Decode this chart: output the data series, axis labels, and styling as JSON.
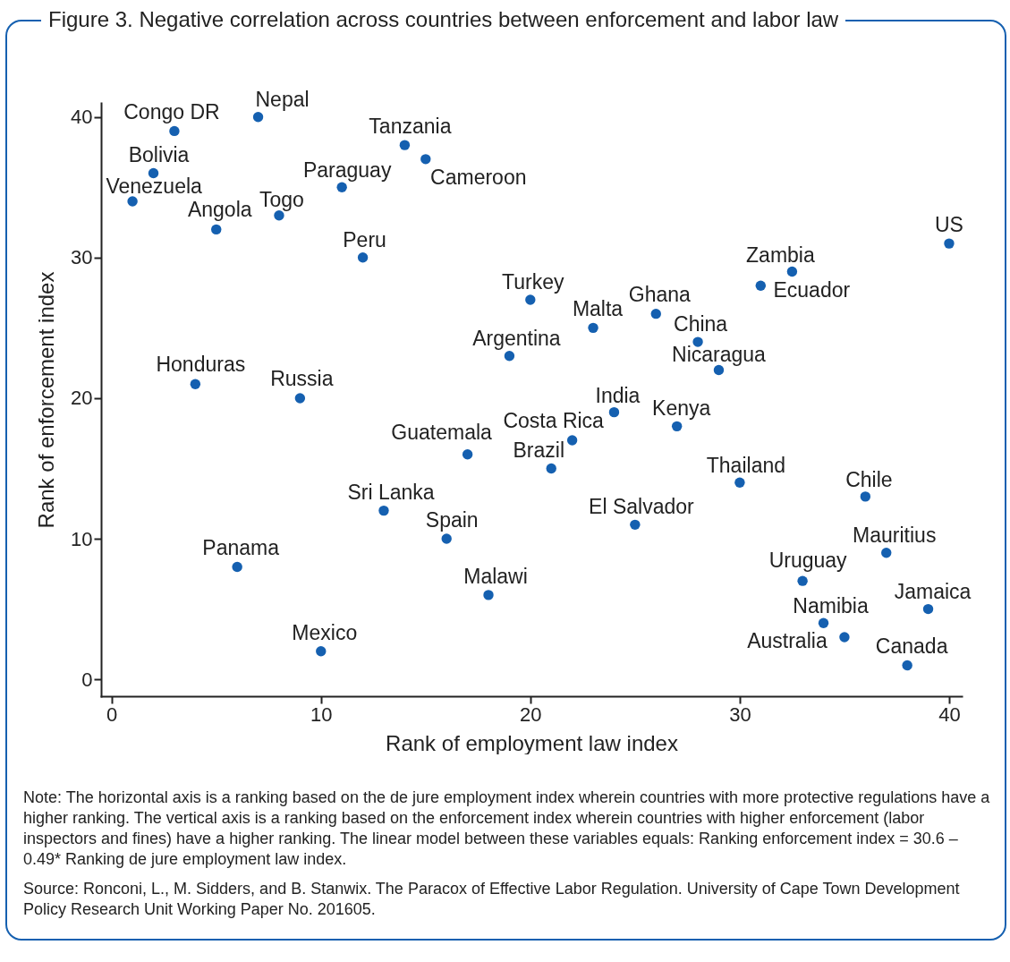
{
  "chart_data": {
    "type": "scatter",
    "title": "Figure 3. Negative correlation across countries between enforcement and labor law",
    "xlabel": "Rank of employment law index",
    "ylabel": "Rank of enforcement index",
    "x": [
      1,
      2,
      3,
      4,
      5,
      6,
      7,
      8,
      9,
      10,
      11,
      12,
      13,
      14,
      15,
      16,
      17,
      18,
      19,
      20,
      21,
      22,
      23,
      24,
      25,
      26,
      27,
      28,
      29,
      30,
      31,
      32.5,
      33,
      34,
      35,
      36,
      37,
      38,
      39,
      40
    ],
    "series": [
      {
        "color": "#1560b0",
        "values": [
          34,
          36,
          39,
          21,
          32,
          8,
          40,
          33,
          20,
          2,
          35,
          30,
          12,
          38,
          37,
          10,
          16,
          6,
          23,
          27,
          15,
          17,
          25,
          19,
          11,
          26,
          18,
          24,
          22,
          14,
          28,
          29,
          7,
          4,
          3,
          13,
          9,
          1,
          5,
          31
        ]
      }
    ],
    "xlim": [
      -0.5,
      40.6
    ],
    "ylim": [
      -1.2,
      41
    ],
    "xticks": [
      0,
      10,
      20,
      30,
      40
    ],
    "yticks": [
      0,
      10,
      20,
      30,
      40
    ],
    "marker": "circle",
    "grid": false,
    "annotations": [
      {
        "text": "Venezuela",
        "x": 1,
        "y": 34
      },
      {
        "text": "Bolivia",
        "x": 2,
        "y": 36
      },
      {
        "text": "Congo DR",
        "x": 3,
        "y": 39
      },
      {
        "text": "Honduras",
        "x": 4,
        "y": 21
      },
      {
        "text": "Angola",
        "x": 5,
        "y": 32
      },
      {
        "text": "Panama",
        "x": 6,
        "y": 8
      },
      {
        "text": "Nepal",
        "x": 7,
        "y": 40
      },
      {
        "text": "Togo",
        "x": 8,
        "y": 33
      },
      {
        "text": "Russia",
        "x": 9,
        "y": 20
      },
      {
        "text": "Mexico",
        "x": 10,
        "y": 2
      },
      {
        "text": "Paraguay",
        "x": 11,
        "y": 35
      },
      {
        "text": "Peru",
        "x": 12,
        "y": 30
      },
      {
        "text": "Sri Lanka",
        "x": 13,
        "y": 12
      },
      {
        "text": "Tanzania",
        "x": 14,
        "y": 38
      },
      {
        "text": "Cameroon",
        "x": 15,
        "y": 37
      },
      {
        "text": "Spain",
        "x": 16,
        "y": 10
      },
      {
        "text": "Guatemala",
        "x": 17,
        "y": 16
      },
      {
        "text": "Malawi",
        "x": 18,
        "y": 6
      },
      {
        "text": "Argentina",
        "x": 19,
        "y": 23
      },
      {
        "text": "Turkey",
        "x": 20,
        "y": 27
      },
      {
        "text": "Brazil",
        "x": 21,
        "y": 15
      },
      {
        "text": "Costa Rica",
        "x": 22,
        "y": 17
      },
      {
        "text": "Malta",
        "x": 23,
        "y": 25
      },
      {
        "text": "India",
        "x": 24,
        "y": 19
      },
      {
        "text": "El Salvador",
        "x": 25,
        "y": 11
      },
      {
        "text": "Ghana",
        "x": 26,
        "y": 26
      },
      {
        "text": "Kenya",
        "x": 27,
        "y": 18
      },
      {
        "text": "China",
        "x": 28,
        "y": 24
      },
      {
        "text": "Nicaragua",
        "x": 29,
        "y": 22
      },
      {
        "text": "Thailand",
        "x": 30,
        "y": 14
      },
      {
        "text": "Ecuador",
        "x": 31,
        "y": 28
      },
      {
        "text": "Zambia",
        "x": 32.5,
        "y": 29
      },
      {
        "text": "Uruguay",
        "x": 33,
        "y": 7
      },
      {
        "text": "Namibia",
        "x": 34,
        "y": 4
      },
      {
        "text": "Australia",
        "x": 35,
        "y": 3
      },
      {
        "text": "Chile",
        "x": 36,
        "y": 13
      },
      {
        "text": "Mauritius",
        "x": 37,
        "y": 9
      },
      {
        "text": "Canada",
        "x": 38,
        "y": 1
      },
      {
        "text": "Jamaica",
        "x": 39,
        "y": 5
      },
      {
        "text": "US",
        "x": 40,
        "y": 31
      },
      "Note: The horizontal axis is a ranking based on the de jure employment index wherein countries with more protective regulations have a higher ranking. The vertical axis is a ranking based on the enforcement index wherein countries with higher enforcement (labor inspectors and fines) have a higher ranking. The linear model between these variables equals: Ranking enforcement index = 30.6 – 0.49* Ranking de jure employment law index.",
      "Source: Ronconi, L., M. Sidders, and B. Stanwix. The Paracox of Effective Labor Regulation. University of Cape Town Development Policy Research Unit Working Paper No. 201605."
    ]
  }
}
